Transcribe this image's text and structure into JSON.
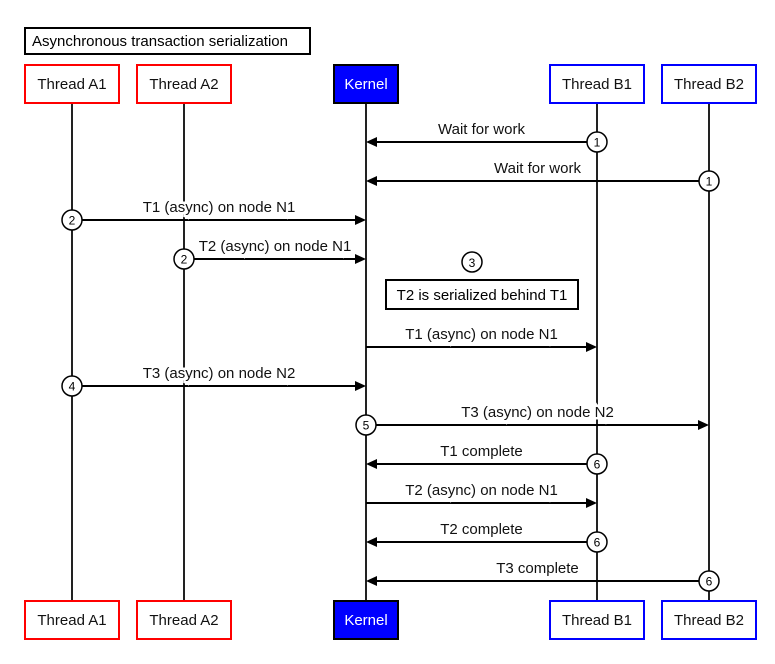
{
  "title": "Asynchronous transaction serialization",
  "colors": {
    "thread_a": "#ff0000",
    "kernel": "#0000ff",
    "thread_b": "#0000ff",
    "line": "#000000"
  },
  "participants": [
    {
      "id": "a1",
      "label": "Thread A1",
      "style": "thread_a"
    },
    {
      "id": "a2",
      "label": "Thread A2",
      "style": "thread_a"
    },
    {
      "id": "k",
      "label": "Kernel",
      "style": "kernel"
    },
    {
      "id": "b1",
      "label": "Thread B1",
      "style": "thread_b"
    },
    {
      "id": "b2",
      "label": "Thread B2",
      "style": "thread_b"
    }
  ],
  "messages": [
    {
      "from": "b1",
      "to": "k",
      "label": "Wait for work",
      "step": "1"
    },
    {
      "from": "b2",
      "to": "k",
      "label": "Wait for work",
      "step": "1"
    },
    {
      "from": "a1",
      "to": "k",
      "label": "T1 (async) on node N1",
      "step": "2"
    },
    {
      "from": "a2",
      "to": "k",
      "label": "T2 (async) on node N1",
      "step": "2"
    },
    {
      "note": "T2 is serialized behind T1",
      "step": "3"
    },
    {
      "from": "k",
      "to": "b1",
      "label": "T1 (async) on node N1",
      "step": ""
    },
    {
      "from": "a1",
      "to": "k",
      "label": "T3 (async) on node N2",
      "step": "4"
    },
    {
      "from": "k",
      "to": "b2",
      "label": "T3 (async) on node N2",
      "step": "5"
    },
    {
      "from": "b1",
      "to": "k",
      "label": "T1 complete",
      "step": "6"
    },
    {
      "from": "k",
      "to": "b1",
      "label": "T2 (async) on node N1",
      "step": ""
    },
    {
      "from": "b1",
      "to": "k",
      "label": "T2 complete",
      "step": "6"
    },
    {
      "from": "b2",
      "to": "k",
      "label": "T3 complete",
      "step": "6"
    }
  ]
}
